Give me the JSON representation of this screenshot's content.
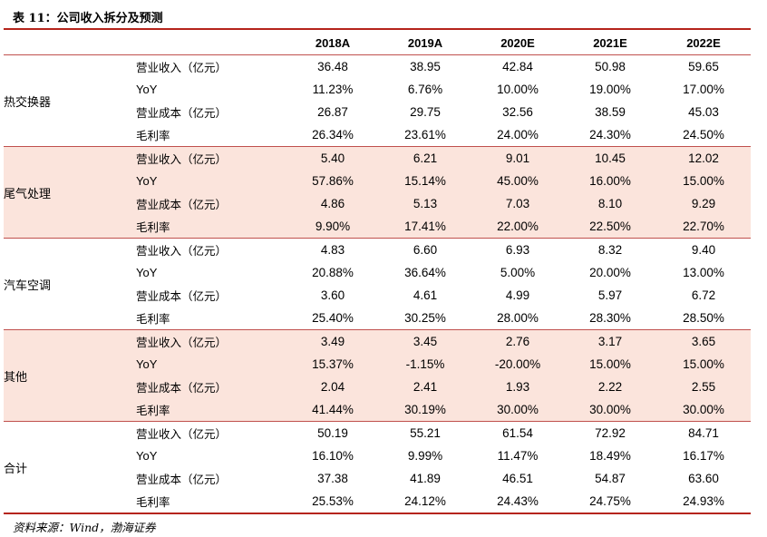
{
  "title": "表 11：公司收入拆分及预测",
  "columns": [
    "2018A",
    "2019A",
    "2020E",
    "2021E",
    "2022E"
  ],
  "metrics": [
    "营业收入（亿元）",
    "YoY",
    "营业成本（亿元）",
    "毛利率"
  ],
  "segments": [
    {
      "name": "热交换器",
      "shaded": false,
      "rows": [
        [
          "36.48",
          "38.95",
          "42.84",
          "50.98",
          "59.65"
        ],
        [
          "11.23%",
          "6.76%",
          "10.00%",
          "19.00%",
          "17.00%"
        ],
        [
          "26.87",
          "29.75",
          "32.56",
          "38.59",
          "45.03"
        ],
        [
          "26.34%",
          "23.61%",
          "24.00%",
          "24.30%",
          "24.50%"
        ]
      ]
    },
    {
      "name": "尾气处理",
      "shaded": true,
      "rows": [
        [
          "5.40",
          "6.21",
          "9.01",
          "10.45",
          "12.02"
        ],
        [
          "57.86%",
          "15.14%",
          "45.00%",
          "16.00%",
          "15.00%"
        ],
        [
          "4.86",
          "5.13",
          "7.03",
          "8.10",
          "9.29"
        ],
        [
          "9.90%",
          "17.41%",
          "22.00%",
          "22.50%",
          "22.70%"
        ]
      ]
    },
    {
      "name": "汽车空调",
      "shaded": false,
      "rows": [
        [
          "4.83",
          "6.60",
          "6.93",
          "8.32",
          "9.40"
        ],
        [
          "20.88%",
          "36.64%",
          "5.00%",
          "20.00%",
          "13.00%"
        ],
        [
          "3.60",
          "4.61",
          "4.99",
          "5.97",
          "6.72"
        ],
        [
          "25.40%",
          "30.25%",
          "28.00%",
          "28.30%",
          "28.50%"
        ]
      ]
    },
    {
      "name": "其他",
      "shaded": true,
      "rows": [
        [
          "3.49",
          "3.45",
          "2.76",
          "3.17",
          "3.65"
        ],
        [
          "15.37%",
          "-1.15%",
          "-20.00%",
          "15.00%",
          "15.00%"
        ],
        [
          "2.04",
          "2.41",
          "1.93",
          "2.22",
          "2.55"
        ],
        [
          "41.44%",
          "30.19%",
          "30.00%",
          "30.00%",
          "30.00%"
        ]
      ]
    },
    {
      "name": "合计",
      "shaded": false,
      "rows": [
        [
          "50.19",
          "55.21",
          "61.54",
          "72.92",
          "84.71"
        ],
        [
          "16.10%",
          "9.99%",
          "11.47%",
          "18.49%",
          "16.17%"
        ],
        [
          "37.38",
          "41.89",
          "46.51",
          "54.87",
          "63.60"
        ],
        [
          "25.53%",
          "24.12%",
          "24.43%",
          "24.75%",
          "24.93%"
        ]
      ]
    }
  ],
  "source": "资料来源：Wind，渤海证券"
}
